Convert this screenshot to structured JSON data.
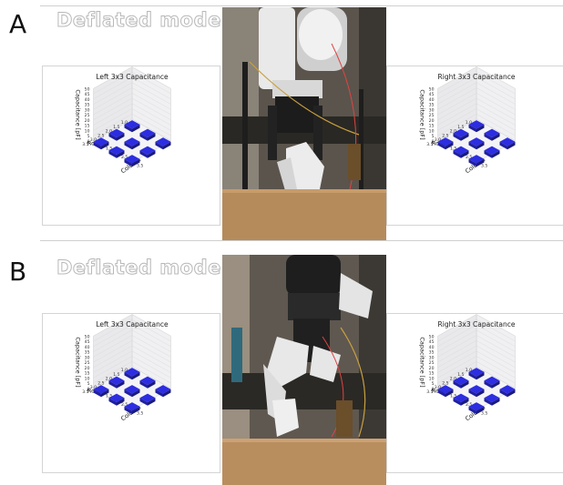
{
  "panels": [
    {
      "id": "A",
      "letter": "A",
      "mode_title": "Deflated mode:",
      "photo_text": "",
      "charts": [
        {
          "side": "left",
          "chart_data": {
            "type": "bar3d",
            "title": "Left 3x3 Capacitance",
            "zlabel": "Capacitance [pF]",
            "xlabel": "Column",
            "ylabel": "Row",
            "zlim": [
              0,
              50
            ],
            "z_ticks": [
              "0",
              "5",
              "10",
              "15",
              "20",
              "25",
              "30",
              "35",
              "40",
              "45",
              "50"
            ],
            "row_ticks": [
              "1.0",
              "1.5",
              "2.0",
              "2.5",
              "3.0",
              "3.5"
            ],
            "col_ticks": [
              "1.0",
              "1.5",
              "2.0",
              "2.5",
              "3.0",
              "3.5"
            ],
            "values": [
              [
                0,
                0,
                0
              ],
              [
                0,
                0,
                0
              ],
              [
                0,
                0,
                0
              ]
            ],
            "bar_color": "#2b2bd6"
          }
        },
        {
          "side": "right",
          "chart_data": {
            "type": "bar3d",
            "title": "Right 3x3 Capacitance",
            "zlabel": "Capacitance [pF]",
            "xlabel": "Column",
            "ylabel": "Row",
            "zlim": [
              0,
              50
            ],
            "z_ticks": [
              "0",
              "5",
              "10",
              "15",
              "20",
              "25",
              "30",
              "35",
              "40",
              "45",
              "50"
            ],
            "row_ticks": [
              "1.0",
              "1.5",
              "2.0",
              "2.5",
              "3.0",
              "3.5"
            ],
            "col_ticks": [
              "1.0",
              "1.5",
              "2.0",
              "2.5",
              "3.0",
              "3.5"
            ],
            "values": [
              [
                0,
                0,
                0
              ],
              [
                0,
                0,
                0
              ],
              [
                0,
                0,
                0
              ]
            ],
            "bar_color": "#2b2bd6"
          }
        }
      ]
    },
    {
      "id": "B",
      "letter": "B",
      "mode_title": "Deflated mode:",
      "photo_text": "",
      "charts": [
        {
          "side": "left",
          "chart_data": {
            "type": "bar3d",
            "title": "Left 3x3 Capacitance",
            "zlabel": "Capacitance [pF]",
            "xlabel": "Column",
            "ylabel": "Row",
            "zlim": [
              0,
              50
            ],
            "z_ticks": [
              "0",
              "5",
              "10",
              "15",
              "20",
              "25",
              "30",
              "35",
              "40",
              "45",
              "50"
            ],
            "row_ticks": [
              "1.0",
              "1.5",
              "2.0",
              "2.5",
              "3.0",
              "3.5"
            ],
            "col_ticks": [
              "1.0",
              "1.5",
              "2.0",
              "2.5",
              "3.0",
              "3.5"
            ],
            "values": [
              [
                0,
                0,
                0
              ],
              [
                0,
                0,
                0
              ],
              [
                0,
                0,
                0
              ]
            ],
            "bar_color": "#2b2bd6"
          }
        },
        {
          "side": "right",
          "chart_data": {
            "type": "bar3d",
            "title": "Right 3x3 Capacitance",
            "zlabel": "Capacitance [pF]",
            "xlabel": "Column",
            "ylabel": "Row",
            "zlim": [
              0,
              50
            ],
            "z_ticks": [
              "0",
              "5",
              "10",
              "15",
              "20",
              "25",
              "30",
              "35",
              "40",
              "45",
              "50"
            ],
            "row_ticks": [
              "1.0",
              "1.5",
              "2.0",
              "2.5",
              "3.0",
              "3.5"
            ],
            "col_ticks": [
              "1.0",
              "1.5",
              "2.0",
              "2.5",
              "3.0",
              "3.5"
            ],
            "values": [
              [
                0,
                0,
                0
              ],
              [
                0,
                0,
                0
              ],
              [
                0,
                0,
                0
              ]
            ],
            "bar_color": "#2b2bd6"
          }
        }
      ]
    }
  ]
}
